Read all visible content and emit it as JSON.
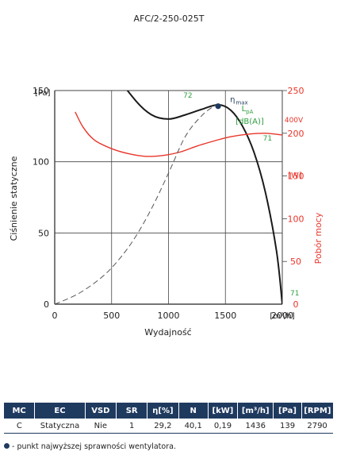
{
  "chart_data": {
    "type": "line",
    "title": "AFC/2-250-025T",
    "xlabel": "Wydajność",
    "x_unit": "[m³/h]",
    "ylabel": "Ciśnienie statyczne",
    "y_unit": "[Pa]",
    "y2label": "Pobór mocy",
    "y2_unit": "[W]",
    "xlim": [
      0,
      2000
    ],
    "ylim": [
      0,
      150
    ],
    "y2lim": [
      0,
      250
    ],
    "x_ticks": [
      0,
      500,
      1000,
      1500,
      2000
    ],
    "y_ticks": [
      0,
      50,
      100,
      150
    ],
    "y2_ticks": [
      0,
      50,
      100,
      150,
      200,
      250
    ],
    "grid": true,
    "lpa_label": "L",
    "lpa_sub": "pA",
    "lpa_unit": "[dB(A)]",
    "colors": {
      "pressure": "#1a1a1a",
      "power": "#e8352a",
      "efficiency": "#555555",
      "green": "#2e9e3e",
      "navy": "#1f3a5f",
      "grid": "#444444"
    },
    "series": [
      {
        "name": "",
        "role": "pressure",
        "x": [
          340,
          500,
          700,
          850,
          1000,
          1150,
          1300,
          1440,
          1550,
          1650,
          1750,
          1850,
          1950,
          2000
        ],
        "y": [
          200,
          167,
          144,
          133,
          130,
          133,
          137,
          140,
          136,
          125,
          107,
          79,
          37,
          0
        ]
      },
      {
        "name": "",
        "role": "power",
        "x": [
          180,
          250,
          350,
          500,
          650,
          800,
          950,
          1100,
          1250,
          1400,
          1550,
          1700,
          1850,
          2000
        ],
        "y": [
          225,
          207,
          192,
          182,
          176,
          173,
          174,
          178,
          185,
          191,
          196,
          199,
          200,
          198
        ]
      },
      {
        "name": "",
        "role": "efficiency",
        "x": [
          0,
          200,
          400,
          550,
          700,
          850,
          1000,
          1150,
          1300,
          1420
        ],
        "y": [
          0,
          7,
          18,
          30,
          46,
          67,
          92,
          118,
          133,
          140
        ]
      }
    ],
    "labels": {
      "eta_symbol": "η",
      "eta_sub": "max",
      "lpa_pressure_top": "72",
      "lpa_pressure_mid": "71",
      "lpa_pressure_bottom": "71",
      "power_voltage": "400V"
    },
    "point": {
      "x": 1436,
      "y": 139
    }
  },
  "table": {
    "headers": [
      "MC",
      "EC",
      "VSD",
      "SR",
      "η[%]",
      "N",
      "[kW]",
      "[m³/h]",
      "[Pa]",
      "[RPM]"
    ],
    "row": [
      "C",
      "Statyczna",
      "Nie",
      "1",
      "29,2",
      "40,1",
      "0,19",
      "1436",
      "139",
      "2790"
    ]
  },
  "footnote": "- punkt najwyższej sprawności wentylatora."
}
